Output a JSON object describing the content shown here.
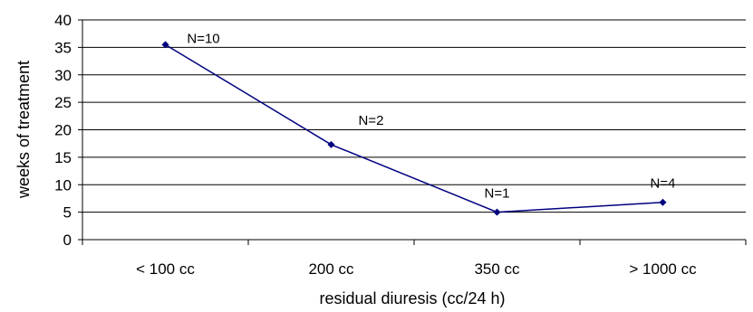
{
  "chart_data": {
    "type": "line",
    "categories": [
      "< 100 cc",
      "200 cc",
      "350 cc",
      "> 1000 cc"
    ],
    "values": [
      35.5,
      17.3,
      5.0,
      6.8
    ],
    "data_labels": [
      "N=10",
      "N=2",
      "N=1",
      "N=4"
    ],
    "xlabel": "residual diuresis (cc/24 h)",
    "ylabel": "weeks of treatment",
    "ylim": [
      0,
      40
    ],
    "yticks": [
      0,
      5,
      10,
      15,
      20,
      25,
      30,
      35,
      40
    ],
    "grid": true,
    "legend": "none",
    "series_color": "#000080"
  }
}
